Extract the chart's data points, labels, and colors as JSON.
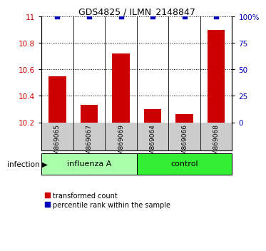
{
  "title": "GDS4825 / ILMN_2148847",
  "samples": [
    "GSM869065",
    "GSM869067",
    "GSM869069",
    "GSM869064",
    "GSM869066",
    "GSM869068"
  ],
  "transformed_counts": [
    10.55,
    10.33,
    10.72,
    10.3,
    10.26,
    10.9
  ],
  "percentile_ranks": [
    100,
    100,
    100,
    100,
    100,
    100
  ],
  "bar_color": "#cc0000",
  "dot_color": "#0000bb",
  "ymin": 10.2,
  "ymax": 11.0,
  "yticks_left": [
    10.2,
    10.4,
    10.6,
    10.8,
    11.0
  ],
  "ytick_labels_left": [
    "10.2",
    "10.4",
    "10.6",
    "10.8",
    "11"
  ],
  "right_yticks_pct": [
    0,
    25,
    50,
    75,
    100
  ],
  "right_ytick_labels": [
    "0",
    "25",
    "50",
    "75",
    "100%"
  ],
  "left_tick_color": "#cc0000",
  "right_tick_color": "#0000bb",
  "bg_plot": "#ffffff",
  "bg_sample_box": "#cccccc",
  "bg_influenza": "#aaffaa",
  "bg_control": "#33ee33",
  "infection_label": "infection ▶",
  "influenza_label": "influenza A",
  "control_label": "control",
  "legend_red_label": "transformed count",
  "legend_blue_label": "percentile rank within the sample",
  "title_fontsize": 9,
  "tick_fontsize": 7.5,
  "sample_fontsize": 6.5,
  "group_fontsize": 8,
  "legend_fontsize": 7
}
